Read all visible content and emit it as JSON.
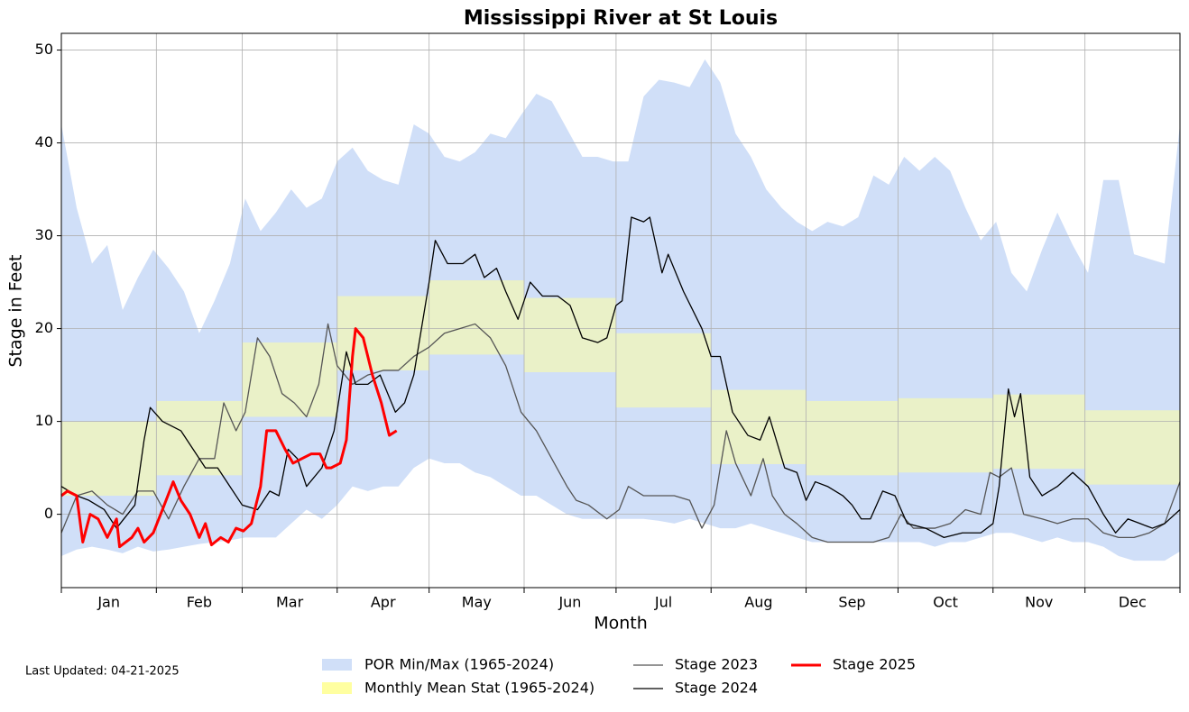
{
  "chart_data": {
    "type": "line",
    "title": "Mississippi River at St Louis",
    "xlabel": "Month",
    "ylabel": "Stage in Feet",
    "footnote": "Last Updated: 04-21-2025",
    "xlim": [
      0,
      365
    ],
    "ylim": [
      -7.9,
      51.8
    ],
    "yticks": [
      0,
      10,
      20,
      30,
      40,
      50
    ],
    "xticks": [
      {
        "value": 15.5,
        "label": "Jan"
      },
      {
        "value": 45,
        "label": "Feb"
      },
      {
        "value": 74.5,
        "label": "Mar"
      },
      {
        "value": 105,
        "label": "Apr"
      },
      {
        "value": 135.5,
        "label": "May"
      },
      {
        "value": 166,
        "label": "Jun"
      },
      {
        "value": 196.5,
        "label": "Jul"
      },
      {
        "value": 227.5,
        "label": "Aug"
      },
      {
        "value": 258,
        "label": "Sep"
      },
      {
        "value": 288.5,
        "label": "Oct"
      },
      {
        "value": 319,
        "label": "Nov"
      },
      {
        "value": 349.5,
        "label": "Dec"
      }
    ],
    "month_edges": [
      0,
      31,
      59,
      90,
      120,
      151,
      181,
      212,
      243,
      273,
      304,
      334,
      365
    ],
    "grid": true,
    "band": {
      "name": "POR Min/Max (1965-2024)",
      "color": "#d0dff8",
      "x": [
        0,
        5,
        10,
        15,
        20,
        25,
        30,
        35,
        40,
        45,
        50,
        55,
        60,
        65,
        70,
        75,
        80,
        85,
        90,
        95,
        100,
        105,
        110,
        115,
        120,
        125,
        130,
        135,
        140,
        145,
        150,
        155,
        160,
        165,
        170,
        175,
        180,
        185,
        190,
        195,
        200,
        205,
        210,
        215,
        220,
        225,
        230,
        235,
        240,
        245,
        250,
        255,
        260,
        265,
        270,
        275,
        280,
        285,
        290,
        295,
        300,
        305,
        310,
        315,
        320,
        325,
        330,
        335,
        340,
        345,
        350,
        355,
        360,
        365
      ],
      "max": [
        42,
        33,
        27,
        29,
        22,
        25.5,
        28.5,
        26.5,
        24,
        19.5,
        23,
        27,
        34,
        30.5,
        32.5,
        35,
        33,
        34,
        38,
        39.5,
        37,
        36,
        35.5,
        42,
        41,
        38.5,
        38,
        39,
        41,
        40.5,
        43,
        45.3,
        44.5,
        41.5,
        38.5,
        38.5,
        38,
        38,
        45,
        46.8,
        46.5,
        46,
        49,
        46.5,
        41,
        38.5,
        35,
        33,
        31.5,
        30.5,
        31.5,
        31,
        32,
        36.5,
        35.5,
        38.5,
        37,
        38.5,
        37,
        33,
        29.5,
        31.5,
        26,
        24,
        28.5,
        32.5,
        29,
        26,
        36,
        36,
        28,
        27.5,
        27,
        42
      ],
      "min": [
        -4.5,
        -3.8,
        -3.5,
        -3.8,
        -4.2,
        -3.5,
        -4,
        -3.8,
        -3.5,
        -3.2,
        -3,
        -2.8,
        -2.5,
        -2.5,
        -2.5,
        -1,
        0.5,
        -0.5,
        1,
        3,
        2.5,
        3,
        3,
        5,
        6,
        5.5,
        5.5,
        4.5,
        4,
        3,
        2,
        2,
        1,
        0,
        -0.5,
        -0.5,
        -0.5,
        -0.5,
        -0.5,
        -0.7,
        -1,
        -0.5,
        -1,
        -1.5,
        -1.5,
        -1,
        -1.5,
        -2,
        -2.5,
        -3,
        -3,
        -3,
        -3,
        -3,
        -3,
        -3,
        -3,
        -3.5,
        -3,
        -3,
        -2.5,
        -2,
        -2,
        -2.5,
        -3,
        -2.5,
        -3,
        -3,
        -3.5,
        -4.5,
        -5,
        -5,
        -5,
        -4
      ]
    },
    "monthly_mean": {
      "name": "Monthly Mean Stat (1965-2024)",
      "color": "#ffffa0",
      "low": [
        2,
        4.2,
        10.5,
        15.5,
        17.2,
        15.3,
        11.5,
        5.4,
        4.2,
        4.5,
        4.9,
        3.2
      ],
      "high": [
        10,
        12.2,
        18.5,
        23.5,
        25.2,
        23.3,
        19.5,
        13.4,
        12.2,
        12.5,
        12.9,
        11.2
      ]
    },
    "series": [
      {
        "name": "Stage 2023",
        "color": "#555555",
        "width": 1.3,
        "x": [
          0,
          5,
          10,
          15,
          20,
          25,
          30,
          35,
          40,
          45,
          50,
          53,
          57,
          60,
          64,
          68,
          72,
          76,
          80,
          84,
          87,
          90,
          95,
          100,
          105,
          110,
          115,
          120,
          125,
          130,
          135,
          140,
          145,
          150,
          155,
          160,
          165,
          168,
          172,
          178,
          182,
          185,
          190,
          195,
          200,
          205,
          209,
          213,
          217,
          220,
          225,
          229,
          232,
          236,
          240,
          245,
          250,
          255,
          260,
          265,
          270,
          274,
          278,
          285,
          290,
          295,
          300,
          303,
          306,
          310,
          314,
          320,
          325,
          330,
          335,
          340,
          345,
          350,
          355,
          360,
          365
        ],
        "values": [
          -2,
          2,
          2.5,
          1,
          0,
          2.5,
          2.5,
          -0.5,
          3,
          6,
          6,
          12,
          9,
          11,
          19,
          17,
          13,
          12,
          10.5,
          14,
          20.5,
          16,
          14,
          15,
          15.5,
          15.5,
          17,
          18,
          19.5,
          20,
          20.5,
          19,
          16,
          11,
          9,
          6,
          3,
          1.5,
          1,
          -0.5,
          0.5,
          3,
          2,
          2,
          2,
          1.5,
          -1.5,
          1,
          9,
          5.5,
          2,
          6,
          2,
          0,
          -1,
          -2.5,
          -3,
          -3,
          -3,
          -3,
          -2.5,
          0,
          -1.5,
          -1.5,
          -1,
          0.5,
          0,
          4.5,
          4,
          5,
          0,
          -0.5,
          -1,
          -0.5,
          -0.5,
          -2,
          -2.5,
          -2.5,
          -2,
          -1,
          3.5
        ]
      },
      {
        "name": "Stage 2024",
        "color": "#000000",
        "width": 1.3,
        "x": [
          0,
          5,
          9,
          14,
          18,
          24,
          27,
          29,
          33,
          39,
          43,
          47,
          51,
          55,
          59,
          64,
          68,
          71,
          74,
          77,
          80,
          85,
          89,
          93,
          96,
          100,
          104,
          109,
          112,
          115,
          120,
          122,
          126,
          131,
          135,
          138,
          142,
          145,
          149,
          153,
          157,
          162,
          166,
          170,
          175,
          178,
          181,
          183,
          186,
          190,
          192,
          196,
          198,
          203,
          209,
          212,
          215,
          219,
          224,
          228,
          231,
          236,
          240,
          243,
          246,
          250,
          255,
          258,
          261,
          264,
          268,
          272,
          276,
          282,
          288,
          294,
          300,
          304,
          306,
          309,
          311,
          313,
          316,
          320,
          325,
          330,
          335,
          340,
          344,
          348,
          352,
          356,
          360,
          365
        ],
        "values": [
          3,
          2,
          1.5,
          0.5,
          -1.5,
          1,
          8,
          11.5,
          10,
          9,
          7,
          5,
          5,
          3,
          1,
          0.5,
          2.5,
          2,
          7,
          6,
          3,
          5,
          9,
          17.5,
          14,
          14,
          15,
          11,
          12,
          15,
          25,
          29.5,
          27,
          27,
          28,
          25.5,
          26.5,
          24,
          21,
          25,
          23.5,
          23.5,
          22.5,
          19,
          18.5,
          19,
          22.5,
          23,
          32,
          31.5,
          32,
          26,
          28,
          24,
          20,
          17,
          17,
          11,
          8.5,
          8,
          10.5,
          5,
          4.5,
          1.5,
          3.5,
          3,
          2,
          1,
          -0.5,
          -0.5,
          2.5,
          2,
          -1,
          -1.5,
          -2.5,
          -2,
          -2,
          -1,
          3,
          13.5,
          10.5,
          13,
          4,
          2,
          3,
          4.5,
          3,
          0,
          -2,
          -0.5,
          -1,
          -1.5,
          -1,
          0.5
        ]
      },
      {
        "name": "Stage 2025",
        "color": "#ff0000",
        "width": 3,
        "x": [
          0,
          2,
          5,
          7,
          9.4,
          12,
          15,
          18,
          19,
          23,
          25,
          27,
          30,
          33,
          36.5,
          39,
          42,
          45,
          47,
          49,
          52,
          54.5,
          57,
          59.4,
          62,
          65,
          67,
          70,
          73,
          75.6,
          78.5,
          81.5,
          84.4,
          86.5,
          88,
          91,
          93,
          95,
          96,
          98.5,
          101.5,
          104.4,
          107,
          109.4
        ],
        "values": [
          2,
          2.5,
          2,
          -3,
          0,
          -0.5,
          -2.5,
          -0.5,
          -3.5,
          -2.5,
          -1.5,
          -3,
          -2,
          0.5,
          3.5,
          1.5,
          0,
          -2.5,
          -1,
          -3.3,
          -2.5,
          -3,
          -1.5,
          -1.8,
          -1,
          3,
          9,
          9,
          7,
          5.5,
          6,
          6.5,
          6.5,
          5,
          5,
          5.5,
          8,
          17,
          20,
          19,
          15,
          12,
          8.5,
          9
        ]
      }
    ]
  }
}
